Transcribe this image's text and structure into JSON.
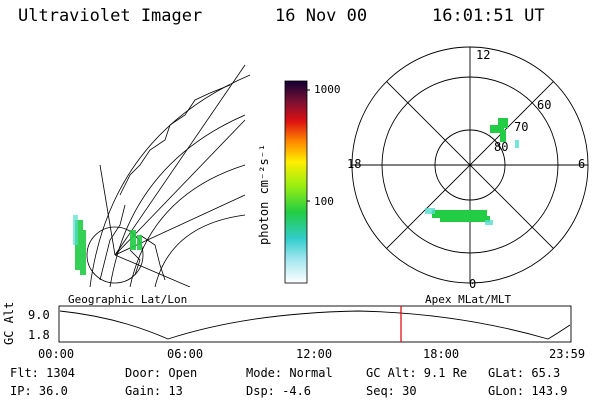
{
  "header": {
    "instrument": "Ultraviolet Imager",
    "date": "16 Nov 00",
    "time": "16:01:51 UT"
  },
  "colorbar": {
    "unit_label": "photon cm⁻²s⁻¹",
    "tick_1000": "1000",
    "tick_100": "100"
  },
  "left_panel": {
    "caption": "Geographic Lat/Lon"
  },
  "right_panel": {
    "caption": "Apex MLat/MLT",
    "mlt_12": "12",
    "mlt_18": "18",
    "mlt_6": "6",
    "mlt_0": "0",
    "lat_60": "60",
    "lat_70": "70",
    "lat_80": "80"
  },
  "timeline": {
    "axis_label": "GC Alt",
    "y_max": "9.0",
    "y_min": "1.8",
    "ticks": [
      "00:00",
      "06:00",
      "12:00",
      "18:00",
      "23:59"
    ],
    "marker_time": "16:01:51"
  },
  "info": {
    "flt": "Flt: 1304",
    "ip": "IP: 36.0",
    "door": "Door: Open",
    "gain": "Gain: 13",
    "mode": "Mode: Normal",
    "dsp": "Dsp:    -4.6",
    "gc_alt": "GC Alt: 9.1 Re",
    "seq": "Seq: 30",
    "glat": "GLat:  65.3",
    "glon": "GLon: 143.9"
  },
  "colors": {
    "marker": "#e00000"
  }
}
